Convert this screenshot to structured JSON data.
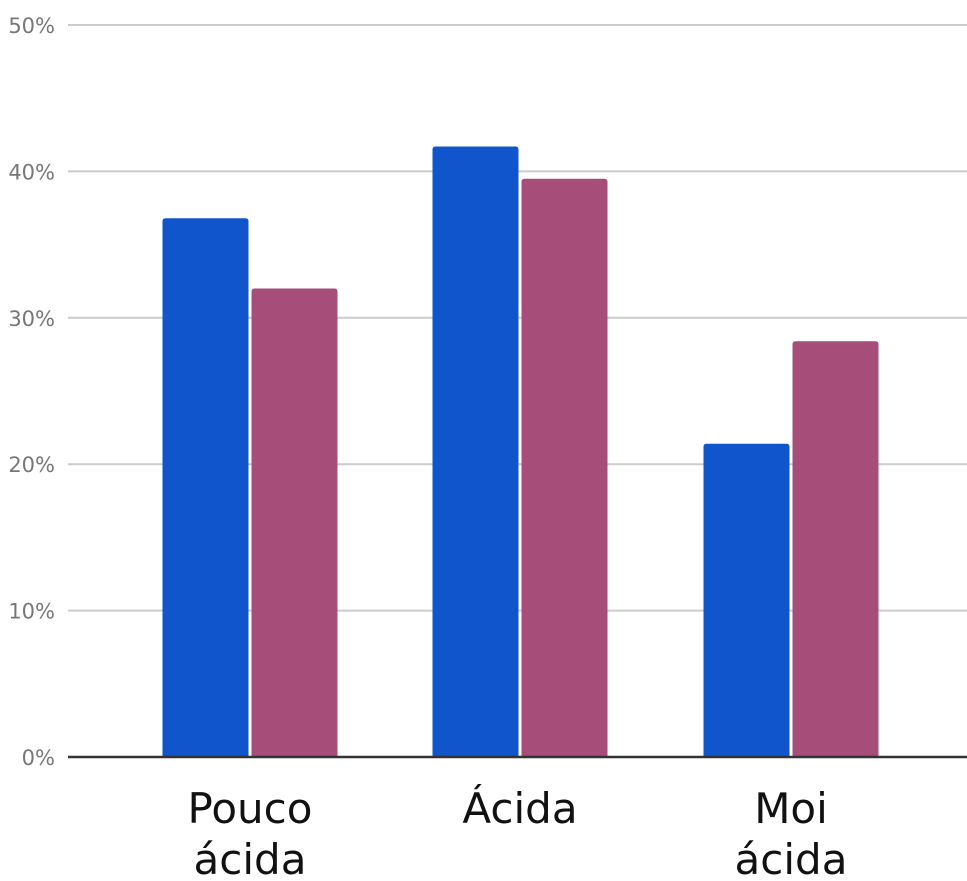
{
  "chart_data": {
    "type": "bar",
    "title": "",
    "xlabel": "",
    "ylabel": "",
    "categories": [
      [
        "Pouco",
        "ácida"
      ],
      [
        "Ácida"
      ],
      [
        "Moi",
        "ácida"
      ]
    ],
    "series": [
      {
        "color": "#1155cc",
        "values": [
          36.8,
          41.7,
          21.4
        ]
      },
      {
        "color": "#a64d79",
        "values": [
          32.0,
          39.5,
          28.4
        ]
      }
    ],
    "ylim": [
      0,
      50
    ],
    "yticks": [
      0,
      10,
      20,
      30,
      40,
      50
    ],
    "ytick_labels": [
      "0%",
      "10%",
      "20%",
      "30%",
      "40%",
      "50%"
    ],
    "grid": true,
    "legend": "none",
    "colors": {
      "grid": "#cccccc",
      "baseline": "#333333",
      "tick_text": "#777777",
      "category_text": "#111111"
    }
  }
}
